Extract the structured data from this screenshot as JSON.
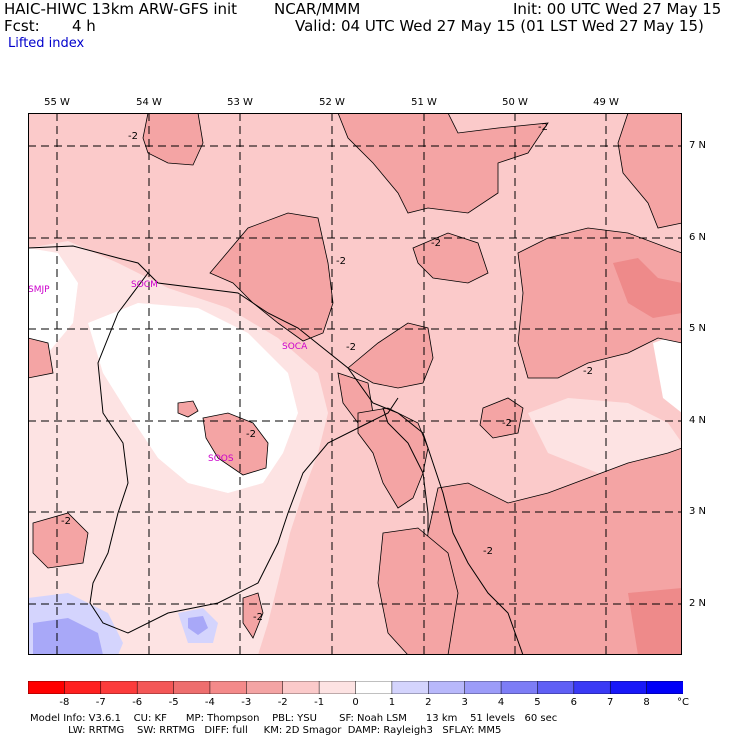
{
  "header": {
    "model_title": "HAIC-HIWC 13km ARW-GFS init",
    "org": "NCAR/MMM",
    "init": "Init: 00 UTC Wed 27 May 15",
    "fcst_label": "Fcst:",
    "fcst_value": "4 h",
    "valid": "Valid: 04 UTC Wed 27 May 15 (01 LST Wed 27 May 15)"
  },
  "field_name": "Lifted index",
  "map": {
    "lon_labels": [
      "55 W",
      "54 W",
      "53 W",
      "52 W",
      "51 W",
      "50 W",
      "49 W"
    ],
    "lat_labels": [
      "7 N",
      "6 N",
      "5 N",
      "4 N",
      "3 N",
      "2 N"
    ],
    "stations": [
      "SMJP",
      "SOCM",
      "SOCA",
      "SOOS"
    ],
    "contour_label": "-2",
    "colors": {
      "light_pink": "#fbcaca",
      "pink": "#f4a4a4",
      "pale": "#fde3e3",
      "white": "#ffffff",
      "blue_light": "#d4d4fd",
      "blue": "#a8a8f8",
      "station": "#cc00cc"
    }
  },
  "colorbar": {
    "unit": "°C",
    "labels": [
      "-8",
      "-7",
      "-6",
      "-5",
      "-4",
      "-3",
      "-2",
      "-1",
      "0",
      "1",
      "2",
      "3",
      "4",
      "5",
      "6",
      "7",
      "8"
    ],
    "colors": [
      "#ff0000",
      "#ff2020",
      "#fc3c3c",
      "#f45757",
      "#ee6e6e",
      "#f48a8a",
      "#f4a4a4",
      "#fbcaca",
      "#fde3e3",
      "#ffffff",
      "#d4d4fd",
      "#b8b8fb",
      "#9c9cf9",
      "#7d7df6",
      "#5f5ff5",
      "#3a3af5",
      "#1818f8",
      "#0000f8"
    ]
  },
  "footer": {
    "line1": "Model Info: V3.6.1    CU: KF      MP: Thompson    PBL: YSU       SF: Noah LSM      13 km    51 levels   60 sec",
    "line2": "            LW: RRTMG    SW: RRTMG   DIFF: full     KM: 2D Smagor  DAMP: Rayleigh3   SFLAY: MM5"
  }
}
